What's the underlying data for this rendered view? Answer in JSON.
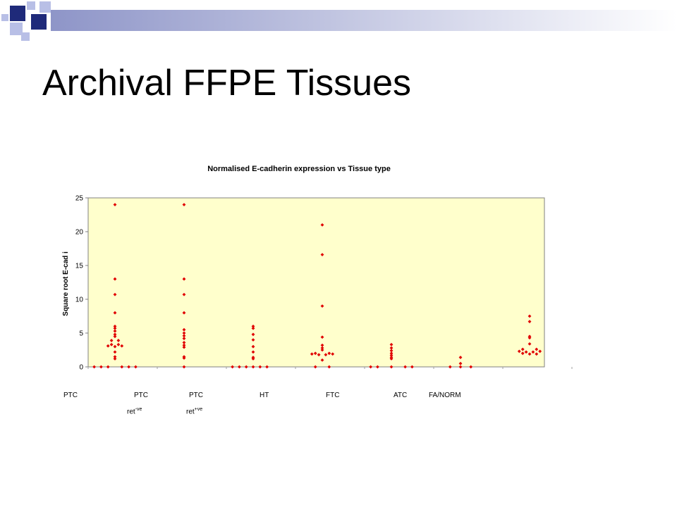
{
  "slide": {
    "title": "Archival FFPE Tissues"
  },
  "colors": {
    "deco_dark": "#1f2a7a",
    "deco_light": "#b8bfe6",
    "band": "#8e95c8",
    "plot_bg": "#ffffcc",
    "marker": "#e00000"
  },
  "x_labels": [
    "PTC",
    "PTC",
    "PTC",
    "HT",
    "FTC",
    "ATC",
    "FA/NORM"
  ],
  "sub_labels": [
    {
      "base": "ret",
      "sup": "-ve"
    },
    {
      "base": "ret",
      "sup": "+ve"
    }
  ],
  "chart_data": {
    "type": "scatter",
    "title": "Normalised E-cadherin expression vs Tissue type",
    "ylabel": "Square root E-cad i",
    "ylim": [
      0,
      25
    ],
    "y_ticks": [
      0,
      5,
      10,
      15,
      20,
      25
    ],
    "grid": false,
    "series": [
      {
        "group": 1,
        "points": [
          {
            "x": 0.7,
            "y": 0
          },
          {
            "x": 0.8,
            "y": 0
          },
          {
            "x": 0.9,
            "y": 0
          },
          {
            "x": 1.1,
            "y": 0
          },
          {
            "x": 1.2,
            "y": 0
          },
          {
            "x": 1.3,
            "y": 0
          },
          {
            "x": 1.0,
            "y": 24
          },
          {
            "x": 1.0,
            "y": 13
          },
          {
            "x": 1.0,
            "y": 10.7
          },
          {
            "x": 1.0,
            "y": 8
          },
          {
            "x": 1.0,
            "y": 6
          },
          {
            "x": 1.0,
            "y": 5.7
          },
          {
            "x": 1.0,
            "y": 5.3
          },
          {
            "x": 1.0,
            "y": 4.8
          },
          {
            "x": 1.0,
            "y": 4.5
          },
          {
            "x": 0.95,
            "y": 3.9
          },
          {
            "x": 1.05,
            "y": 3.9
          },
          {
            "x": 0.95,
            "y": 3.3
          },
          {
            "x": 1.05,
            "y": 3.3
          },
          {
            "x": 0.9,
            "y": 3.1
          },
          {
            "x": 1.0,
            "y": 3.0
          },
          {
            "x": 1.1,
            "y": 3.1
          },
          {
            "x": 1.0,
            "y": 2.2
          },
          {
            "x": 1.0,
            "y": 1.5
          },
          {
            "x": 1.0,
            "y": 1.2
          }
        ]
      },
      {
        "group": 2,
        "points": [
          {
            "x": 2.0,
            "y": 24
          },
          {
            "x": 2.0,
            "y": 13
          },
          {
            "x": 2.0,
            "y": 10.7
          },
          {
            "x": 2.0,
            "y": 8
          },
          {
            "x": 2.0,
            "y": 5.5
          },
          {
            "x": 2.0,
            "y": 5
          },
          {
            "x": 2.0,
            "y": 4.6
          },
          {
            "x": 2.0,
            "y": 4.2
          },
          {
            "x": 2.0,
            "y": 3.6
          },
          {
            "x": 2.0,
            "y": 3.2
          },
          {
            "x": 2.0,
            "y": 2.9
          },
          {
            "x": 2.0,
            "y": 1.5
          },
          {
            "x": 2.0,
            "y": 1.3
          },
          {
            "x": 2.0,
            "y": 0
          }
        ]
      },
      {
        "group": 3,
        "points": [
          {
            "x": 2.7,
            "y": 0
          },
          {
            "x": 2.8,
            "y": 0
          },
          {
            "x": 2.9,
            "y": 0
          },
          {
            "x": 3.0,
            "y": 0
          },
          {
            "x": 3.1,
            "y": 0
          },
          {
            "x": 3.2,
            "y": 0
          },
          {
            "x": 3.0,
            "y": 6
          },
          {
            "x": 3.0,
            "y": 5.7
          },
          {
            "x": 3.0,
            "y": 4.8
          },
          {
            "x": 3.0,
            "y": 4
          },
          {
            "x": 3.0,
            "y": 3
          },
          {
            "x": 3.0,
            "y": 2.2
          },
          {
            "x": 3.0,
            "y": 1.4
          },
          {
            "x": 3.0,
            "y": 1.2
          }
        ]
      },
      {
        "group": 4,
        "points": [
          {
            "x": 4.0,
            "y": 21
          },
          {
            "x": 4.0,
            "y": 16.6
          },
          {
            "x": 4.0,
            "y": 9
          },
          {
            "x": 4.0,
            "y": 4.4
          },
          {
            "x": 4.0,
            "y": 3.2
          },
          {
            "x": 4.0,
            "y": 2.8
          },
          {
            "x": 4.0,
            "y": 2.5
          },
          {
            "x": 3.9,
            "y": 2.0
          },
          {
            "x": 4.1,
            "y": 2.0
          },
          {
            "x": 3.95,
            "y": 1.8
          },
          {
            "x": 4.05,
            "y": 1.8
          },
          {
            "x": 3.85,
            "y": 1.9
          },
          {
            "x": 4.15,
            "y": 1.9
          },
          {
            "x": 4.0,
            "y": 1.0
          },
          {
            "x": 3.9,
            "y": 0
          },
          {
            "x": 4.1,
            "y": 0
          }
        ]
      },
      {
        "group": 5,
        "points": [
          {
            "x": 5.0,
            "y": 3.3
          },
          {
            "x": 5.0,
            "y": 2.8
          },
          {
            "x": 5.0,
            "y": 2.4
          },
          {
            "x": 5.0,
            "y": 2.0
          },
          {
            "x": 5.0,
            "y": 1.7
          },
          {
            "x": 5.0,
            "y": 1.4
          },
          {
            "x": 5.0,
            "y": 1.2
          },
          {
            "x": 4.7,
            "y": 0
          },
          {
            "x": 4.8,
            "y": 0
          },
          {
            "x": 5.0,
            "y": 0
          },
          {
            "x": 5.2,
            "y": 0
          },
          {
            "x": 5.3,
            "y": 0
          }
        ]
      },
      {
        "group": 6,
        "points": [
          {
            "x": 6.0,
            "y": 1.4
          },
          {
            "x": 6.0,
            "y": 0.5
          },
          {
            "x": 5.85,
            "y": 0
          },
          {
            "x": 6.0,
            "y": 0
          },
          {
            "x": 6.15,
            "y": 0
          }
        ]
      },
      {
        "group": 7,
        "points": [
          {
            "x": 7.0,
            "y": 7.5
          },
          {
            "x": 7.0,
            "y": 6.7
          },
          {
            "x": 7.0,
            "y": 4.5
          },
          {
            "x": 7.0,
            "y": 4.3
          },
          {
            "x": 7.0,
            "y": 3.4
          },
          {
            "x": 6.9,
            "y": 2.6
          },
          {
            "x": 7.1,
            "y": 2.6
          },
          {
            "x": 6.85,
            "y": 2.3
          },
          {
            "x": 6.95,
            "y": 2.2
          },
          {
            "x": 7.05,
            "y": 2.2
          },
          {
            "x": 7.15,
            "y": 2.3
          },
          {
            "x": 6.9,
            "y": 2.0
          },
          {
            "x": 7.0,
            "y": 1.9
          },
          {
            "x": 7.1,
            "y": 1.9
          }
        ]
      }
    ]
  }
}
